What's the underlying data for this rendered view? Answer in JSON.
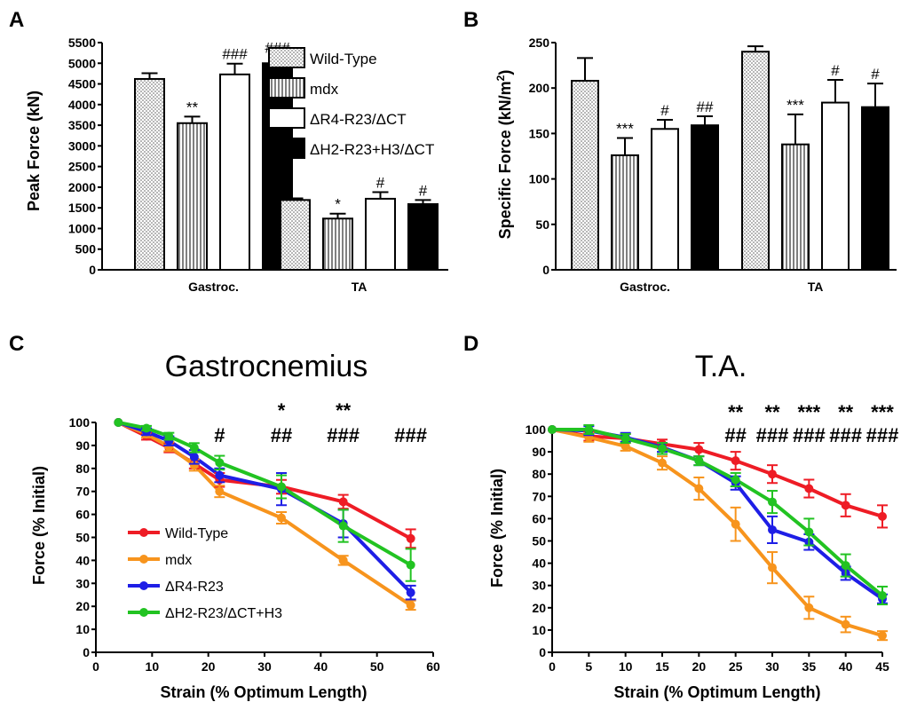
{
  "panel_letters": {
    "A": "A",
    "B": "B",
    "C": "C",
    "D": "D"
  },
  "colors": {
    "wild_type": "#ee1c25",
    "mdx": "#f7941d",
    "r4": "#1e1ee6",
    "h2": "#22c322",
    "axis": "#000000"
  },
  "chart_data": [
    {
      "type": "bar",
      "ylabel": "Peak Force (kN)",
      "xlabel": "",
      "title": "",
      "categories": [
        "Gastroc.",
        "TA"
      ],
      "ylim": [
        0,
        5500
      ],
      "yticks": [
        0,
        500,
        1000,
        1500,
        2000,
        2500,
        3000,
        3500,
        4000,
        4500,
        5000,
        5500
      ],
      "series": [
        {
          "name": "Wild-Type",
          "pattern": "dots",
          "values": [
            4620,
            1690
          ],
          "errors": [
            140,
            40
          ],
          "labels": [
            "",
            ""
          ]
        },
        {
          "name": "mdx",
          "pattern": "vlines",
          "values": [
            3550,
            1240
          ],
          "errors": [
            160,
            120
          ],
          "labels": [
            "**",
            "*"
          ]
        },
        {
          "name": "ΔR4-R23/ΔCT",
          "pattern": "white",
          "values": [
            4730,
            1720
          ],
          "errors": [
            260,
            160
          ],
          "labels": [
            "###",
            "#"
          ]
        },
        {
          "name": "ΔH2-R23+H3/ΔCT",
          "pattern": "black",
          "values": [
            5000,
            1590
          ],
          "errors": [
            150,
            100
          ],
          "labels": [
            "###",
            "#"
          ]
        }
      ],
      "legend": "top-right"
    },
    {
      "type": "bar",
      "ylabel_main": "Specific Force (kN/m",
      "ylabel_sup": "2",
      "ylabel_end": ")",
      "xlabel": "",
      "title": "",
      "categories": [
        "Gastroc.",
        "TA"
      ],
      "ylim": [
        0,
        250
      ],
      "yticks": [
        0,
        50,
        100,
        150,
        200,
        250
      ],
      "series": [
        {
          "name": "Wild-Type",
          "pattern": "dots",
          "values": [
            208,
            240
          ],
          "errors": [
            25,
            6
          ],
          "labels": [
            "",
            ""
          ]
        },
        {
          "name": "mdx",
          "pattern": "vlines",
          "values": [
            126,
            138
          ],
          "errors": [
            19,
            33
          ],
          "labels": [
            "***",
            "***"
          ]
        },
        {
          "name": "ΔR4-R23/ΔCT",
          "pattern": "white",
          "values": [
            155,
            184
          ],
          "errors": [
            10,
            25
          ],
          "labels": [
            "#",
            "#"
          ]
        },
        {
          "name": "ΔH2-R23+H3/ΔCT",
          "pattern": "black",
          "values": [
            159,
            179
          ],
          "errors": [
            10,
            26
          ],
          "labels": [
            "##",
            "#"
          ]
        }
      ],
      "legend": "none"
    },
    {
      "type": "line",
      "title": "Gastrocnemius",
      "xlabel": "Strain (% Optimum Length)",
      "ylabel": "Force (% Initial)",
      "xlim": [
        0,
        60
      ],
      "ylim": [
        0,
        100
      ],
      "xticks": [
        0,
        10,
        20,
        30,
        40,
        50,
        60
      ],
      "yticks": [
        0,
        10,
        20,
        30,
        40,
        50,
        60,
        70,
        80,
        90,
        100
      ],
      "x": [
        4,
        9,
        13,
        17.5,
        22,
        33,
        44,
        56
      ],
      "series": [
        {
          "name": "Wild-Type",
          "color": "#ee1c25",
          "values": [
            100,
            94,
            89,
            82,
            75,
            72,
            65.5,
            49.5
          ],
          "errors": [
            0,
            1.5,
            2,
            2,
            3,
            3,
            3,
            4
          ]
        },
        {
          "name": "mdx",
          "color": "#f7941d",
          "values": [
            100,
            95,
            89.5,
            81.5,
            70,
            58.5,
            40,
            20.5
          ],
          "errors": [
            0,
            1.5,
            2,
            2.5,
            2.5,
            2.5,
            2,
            2
          ]
        },
        {
          "name": "ΔR4-R23",
          "color": "#1e1ee6",
          "values": [
            100,
            96,
            92,
            85,
            77,
            71,
            56,
            26
          ],
          "errors": [
            0,
            1.5,
            2,
            3,
            3,
            7,
            6,
            3
          ]
        },
        {
          "name": "ΔH2-R23/ΔCT+H3",
          "color": "#22c322",
          "values": [
            100,
            97.5,
            94,
            89,
            82.5,
            72,
            55,
            38
          ],
          "errors": [
            0,
            1,
            1.5,
            2,
            3,
            5,
            7,
            7
          ]
        }
      ],
      "annotations": [
        {
          "x": 22,
          "top": "",
          "bottom": "#"
        },
        {
          "x": 33,
          "top": "*",
          "bottom": "##"
        },
        {
          "x": 44,
          "top": "**",
          "bottom": "###"
        },
        {
          "x": 56,
          "top": "",
          "bottom": "###"
        }
      ],
      "legend": "bottom-left"
    },
    {
      "type": "line",
      "title": "T.A.",
      "xlabel": "Strain (% Optimum Length)",
      "ylabel": "Force (% Initial)",
      "xlim": [
        0,
        45
      ],
      "ylim": [
        0,
        100
      ],
      "xticks": [
        0,
        5,
        10,
        15,
        20,
        25,
        30,
        35,
        40,
        45
      ],
      "yticks": [
        0,
        10,
        20,
        30,
        40,
        50,
        60,
        70,
        80,
        90,
        100
      ],
      "x": [
        0,
        5,
        10,
        15,
        20,
        25,
        30,
        35,
        40,
        45
      ],
      "series": [
        {
          "name": "Wild-Type",
          "color": "#ee1c25",
          "values": [
            100,
            97,
            96,
            93.5,
            91,
            86,
            80,
            73.5,
            66,
            61
          ],
          "errors": [
            0,
            2,
            2,
            2,
            3,
            4,
            4,
            4,
            5,
            5
          ]
        },
        {
          "name": "mdx",
          "color": "#f7941d",
          "values": [
            100,
            96.5,
            92.5,
            85,
            73.5,
            57.5,
            38,
            20,
            12.5,
            7.5
          ],
          "errors": [
            0,
            2,
            2,
            3,
            5,
            7.5,
            7,
            5,
            3.5,
            2
          ]
        },
        {
          "name": "ΔR4-R23",
          "color": "#1e1ee6",
          "values": [
            100,
            99.5,
            96.5,
            92,
            86,
            76,
            55,
            49.5,
            35.5,
            24
          ],
          "errors": [
            0,
            2,
            2,
            2,
            2,
            3,
            6,
            3.5,
            3,
            2
          ]
        },
        {
          "name": "ΔH2-R23/ΔCT+H3",
          "color": "#22c322",
          "values": [
            100,
            100,
            96,
            91.5,
            86,
            77.5,
            67.5,
            54,
            39,
            25.5
          ],
          "errors": [
            0,
            2,
            2,
            2.5,
            2,
            3,
            5,
            6,
            5,
            4
          ]
        }
      ],
      "annotations": [
        {
          "x": 25,
          "top": "**",
          "bottom": "##"
        },
        {
          "x": 30,
          "top": "**",
          "bottom": "###"
        },
        {
          "x": 35,
          "top": "***",
          "bottom": "###"
        },
        {
          "x": 40,
          "top": "**",
          "bottom": "###"
        },
        {
          "x": 45,
          "top": "***",
          "bottom": "###"
        }
      ],
      "legend": "none"
    }
  ]
}
